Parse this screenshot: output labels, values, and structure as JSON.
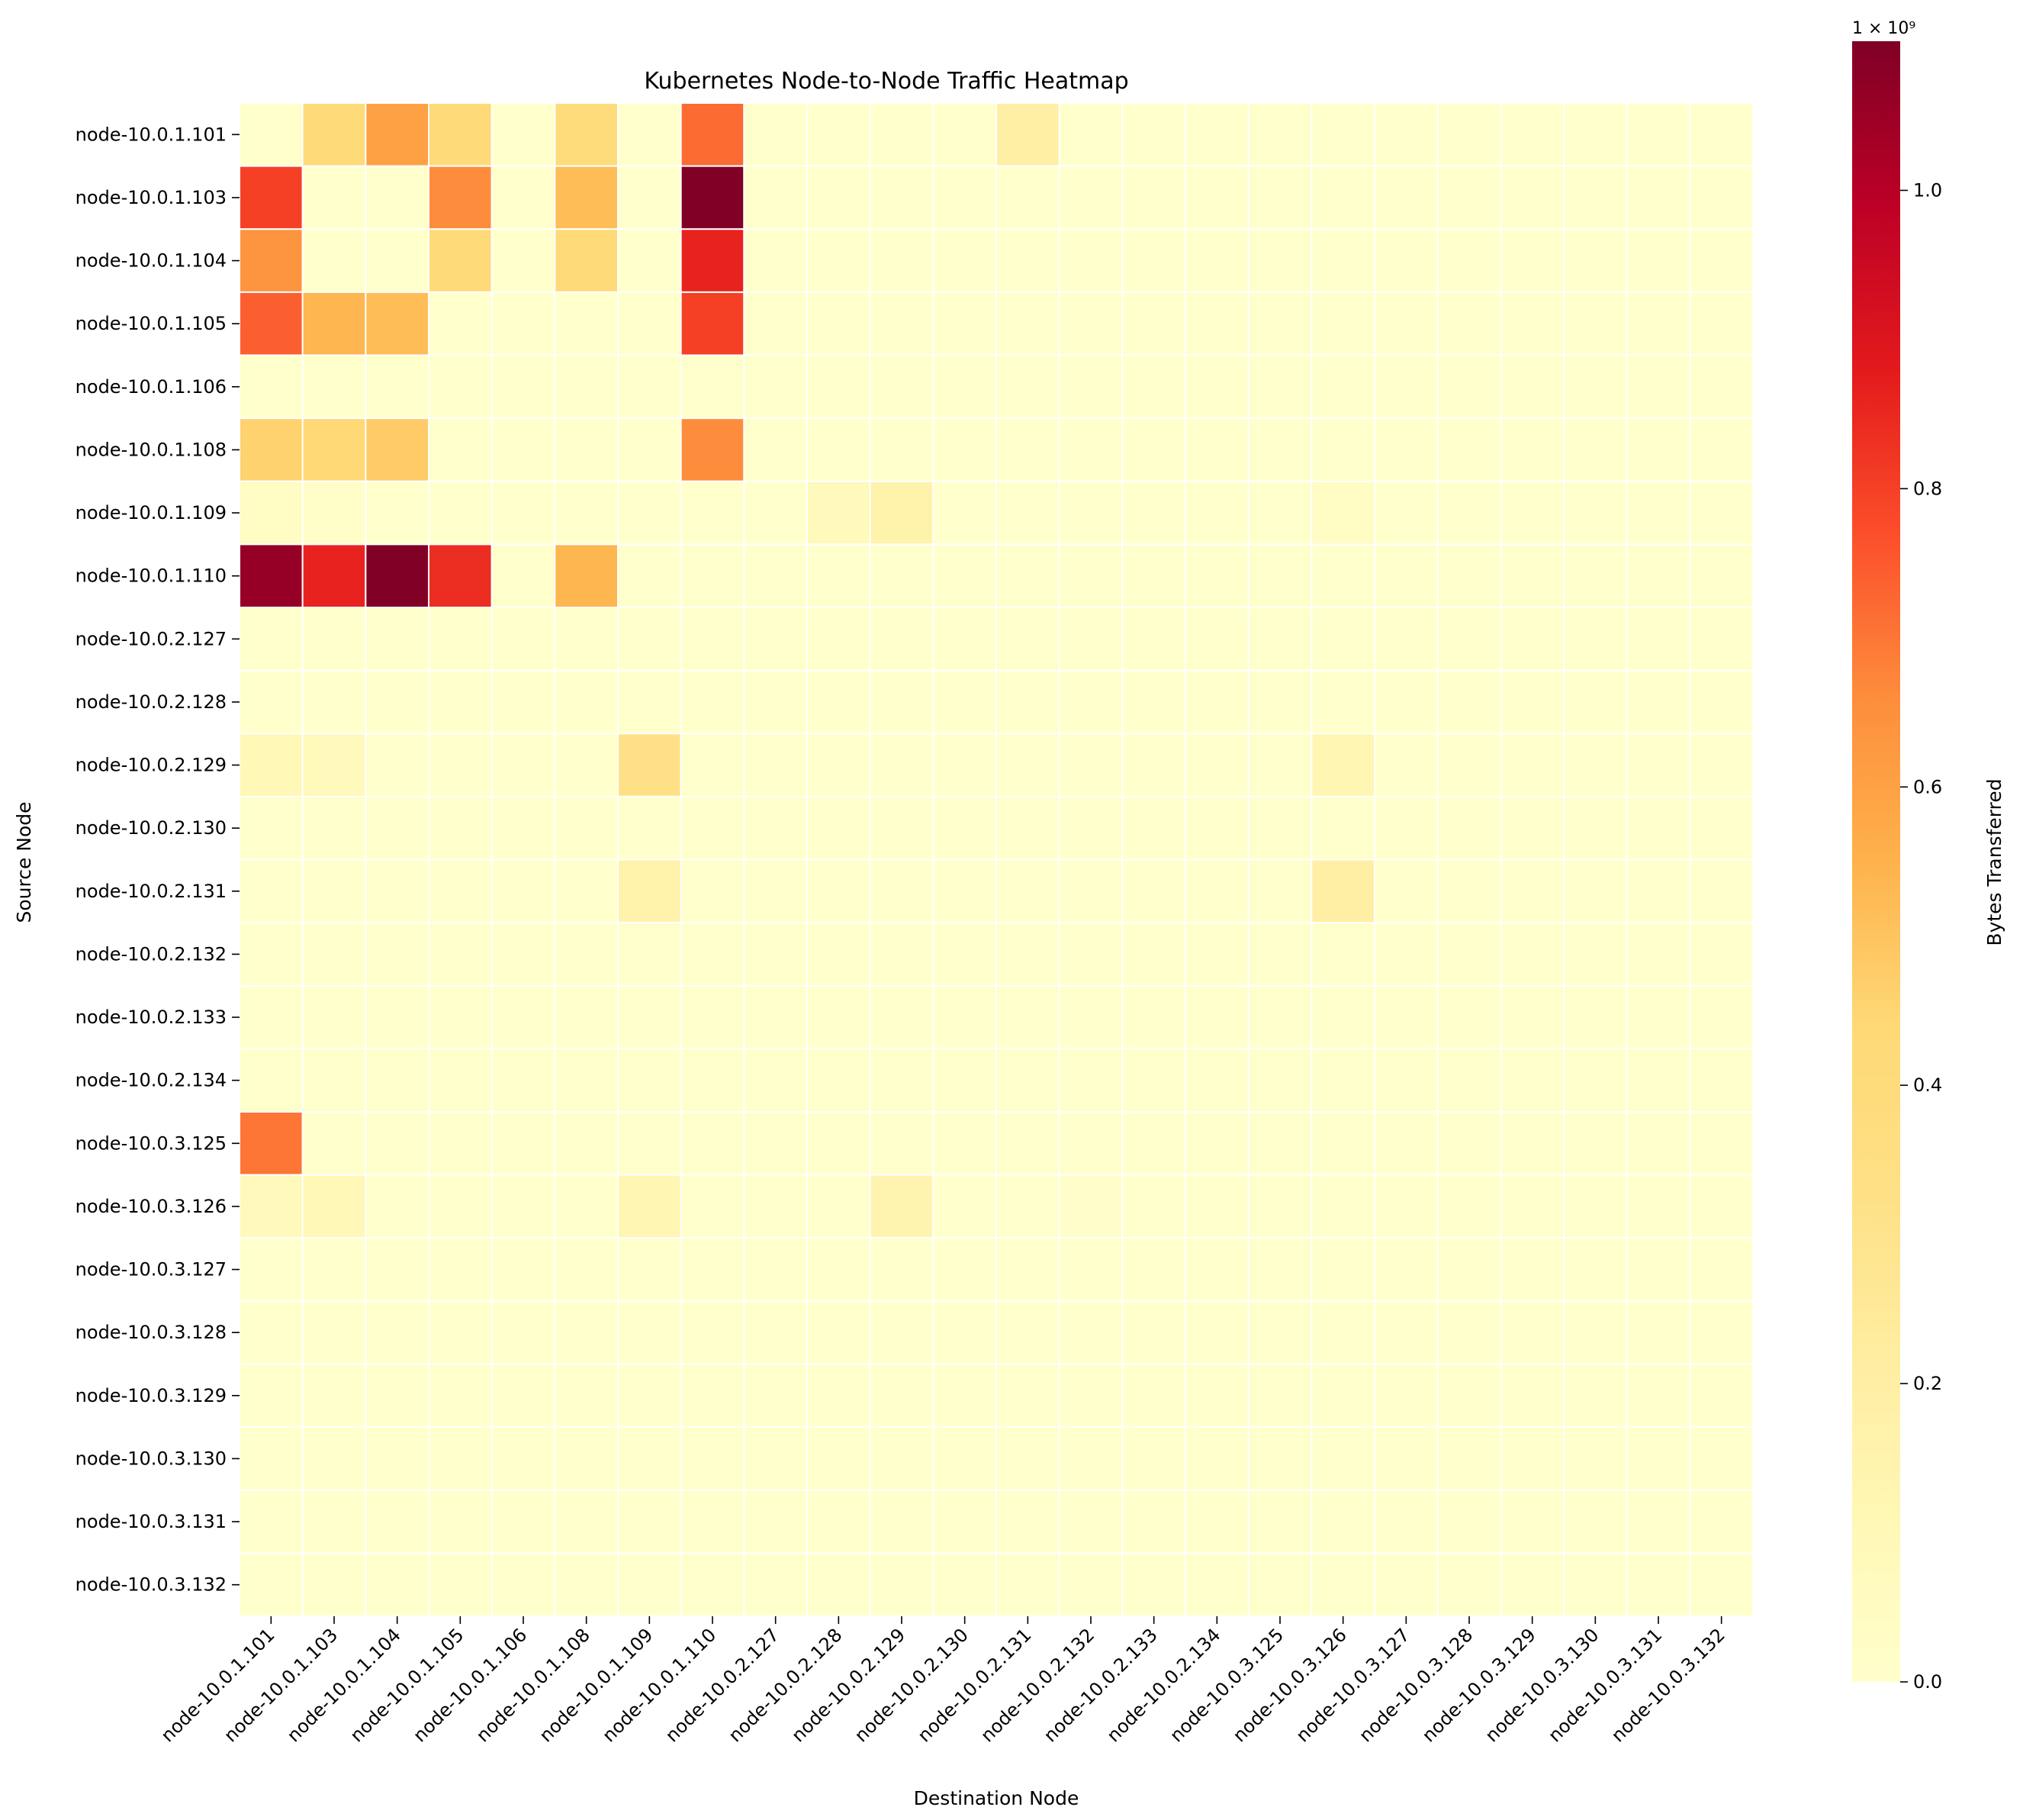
{
  "chart_data": {
    "type": "heatmap",
    "title": "Kubernetes Node-to-Node Traffic Heatmap",
    "xlabel": "Destination Node",
    "ylabel": "Source Node",
    "colorbar": {
      "label": "Bytes Transferred",
      "exponent_label": "1 × 10⁹",
      "multiplier": 1000000000,
      "range": [
        0,
        1.1
      ],
      "ticks": [
        "0.0",
        "0.2",
        "0.4",
        "0.6",
        "0.8",
        "1.0"
      ],
      "tick_values": [
        0,
        0.2,
        0.4,
        0.6,
        0.8,
        1.0
      ],
      "colors": [
        "#ffffcc",
        "#fff7b5",
        "#ffeda0",
        "#fee085",
        "#fed976",
        "#feb24c",
        "#fd8d3c",
        "#fc4e2a",
        "#e31a1c",
        "#bd0026",
        "#800026"
      ]
    },
    "rows": [
      "node-10.0.1.101",
      "node-10.0.1.103",
      "node-10.0.1.104",
      "node-10.0.1.105",
      "node-10.0.1.106",
      "node-10.0.1.108",
      "node-10.0.1.109",
      "node-10.0.1.110",
      "node-10.0.2.127",
      "node-10.0.2.128",
      "node-10.0.2.129",
      "node-10.0.2.130",
      "node-10.0.2.131",
      "node-10.0.2.132",
      "node-10.0.2.133",
      "node-10.0.2.134",
      "node-10.0.3.125",
      "node-10.0.3.126",
      "node-10.0.3.127",
      "node-10.0.3.128",
      "node-10.0.3.129",
      "node-10.0.3.130",
      "node-10.0.3.131",
      "node-10.0.3.132"
    ],
    "columns": [
      "node-10.0.1.101",
      "node-10.0.1.103",
      "node-10.0.1.104",
      "node-10.0.1.105",
      "node-10.0.1.106",
      "node-10.0.1.108",
      "node-10.0.1.109",
      "node-10.0.1.110",
      "node-10.0.2.127",
      "node-10.0.2.128",
      "node-10.0.2.129",
      "node-10.0.2.130",
      "node-10.0.2.131",
      "node-10.0.2.132",
      "node-10.0.2.133",
      "node-10.0.2.134",
      "node-10.0.3.125",
      "node-10.0.3.126",
      "node-10.0.3.127",
      "node-10.0.3.128",
      "node-10.0.3.129",
      "node-10.0.3.130",
      "node-10.0.3.131",
      "node-10.0.3.132"
    ],
    "values": [
      [
        0.0,
        0.42,
        0.6,
        0.42,
        0.0,
        0.4,
        0.0,
        0.72,
        0.0,
        0.0,
        0.0,
        0.0,
        0.2,
        0.0,
        0.0,
        0.0,
        0.0,
        0.0,
        0.0,
        0.0,
        0.0,
        0.0,
        0.0,
        0.0
      ],
      [
        0.8,
        0.0,
        0.0,
        0.66,
        0.0,
        0.52,
        0.0,
        1.1,
        0.0,
        0.0,
        0.0,
        0.0,
        0.0,
        0.0,
        0.0,
        0.0,
        0.0,
        0.0,
        0.0,
        0.0,
        0.0,
        0.0,
        0.0,
        0.0
      ],
      [
        0.64,
        0.0,
        0.0,
        0.42,
        0.0,
        0.42,
        0.0,
        0.86,
        0.0,
        0.0,
        0.0,
        0.0,
        0.0,
        0.0,
        0.0,
        0.0,
        0.0,
        0.0,
        0.0,
        0.0,
        0.0,
        0.0,
        0.0,
        0.0
      ],
      [
        0.74,
        0.54,
        0.52,
        0.0,
        0.0,
        0.0,
        0.0,
        0.8,
        0.0,
        0.0,
        0.0,
        0.0,
        0.0,
        0.0,
        0.0,
        0.0,
        0.0,
        0.0,
        0.0,
        0.0,
        0.0,
        0.0,
        0.0,
        0.0
      ],
      [
        0.0,
        0.0,
        0.0,
        0.0,
        0.0,
        0.0,
        0.0,
        0.0,
        0.0,
        0.0,
        0.0,
        0.0,
        0.0,
        0.0,
        0.0,
        0.0,
        0.0,
        0.0,
        0.0,
        0.0,
        0.0,
        0.0,
        0.0,
        0.0
      ],
      [
        0.46,
        0.44,
        0.48,
        0.0,
        0.0,
        0.0,
        0.0,
        0.66,
        0.0,
        0.0,
        0.0,
        0.0,
        0.0,
        0.0,
        0.0,
        0.0,
        0.0,
        0.0,
        0.0,
        0.0,
        0.0,
        0.0,
        0.0,
        0.0
      ],
      [
        0.04,
        0.02,
        0.0,
        0.0,
        0.0,
        0.0,
        0.0,
        0.0,
        0.0,
        0.08,
        0.16,
        0.0,
        0.0,
        0.0,
        0.0,
        0.0,
        0.0,
        0.04,
        0.0,
        0.0,
        0.0,
        0.0,
        0.0,
        0.0
      ],
      [
        1.06,
        0.86,
        1.1,
        0.84,
        0.0,
        0.54,
        0.0,
        0.0,
        0.0,
        0.0,
        0.0,
        0.0,
        0.0,
        0.0,
        0.0,
        0.0,
        0.0,
        0.0,
        0.0,
        0.0,
        0.0,
        0.0,
        0.0,
        0.0
      ],
      [
        0.0,
        0.0,
        0.0,
        0.0,
        0.0,
        0.0,
        0.0,
        0.0,
        0.0,
        0.0,
        0.0,
        0.0,
        0.0,
        0.0,
        0.0,
        0.0,
        0.0,
        0.0,
        0.0,
        0.0,
        0.0,
        0.0,
        0.0,
        0.0
      ],
      [
        0.0,
        0.0,
        0.0,
        0.0,
        0.0,
        0.0,
        0.0,
        0.0,
        0.0,
        0.0,
        0.0,
        0.0,
        0.0,
        0.0,
        0.0,
        0.0,
        0.0,
        0.0,
        0.0,
        0.0,
        0.0,
        0.0,
        0.0,
        0.0
      ],
      [
        0.1,
        0.08,
        0.0,
        0.0,
        0.0,
        0.0,
        0.32,
        0.0,
        0.0,
        0.0,
        0.0,
        0.0,
        0.0,
        0.0,
        0.0,
        0.0,
        0.0,
        0.12,
        0.0,
        0.0,
        0.0,
        0.0,
        0.0,
        0.0
      ],
      [
        0.0,
        0.0,
        0.0,
        0.0,
        0.0,
        0.0,
        0.0,
        0.0,
        0.0,
        0.0,
        0.0,
        0.0,
        0.0,
        0.0,
        0.0,
        0.0,
        0.0,
        0.0,
        0.0,
        0.0,
        0.0,
        0.0,
        0.0,
        0.0
      ],
      [
        0.0,
        0.0,
        0.0,
        0.0,
        0.0,
        0.0,
        0.16,
        0.0,
        0.0,
        0.0,
        0.0,
        0.0,
        0.0,
        0.0,
        0.0,
        0.0,
        0.0,
        0.2,
        0.0,
        0.0,
        0.0,
        0.0,
        0.0,
        0.0
      ],
      [
        0.0,
        0.0,
        0.0,
        0.0,
        0.0,
        0.0,
        0.0,
        0.0,
        0.0,
        0.0,
        0.0,
        0.0,
        0.0,
        0.0,
        0.0,
        0.0,
        0.0,
        0.0,
        0.0,
        0.0,
        0.0,
        0.0,
        0.0,
        0.0
      ],
      [
        0.0,
        0.0,
        0.0,
        0.0,
        0.0,
        0.0,
        0.0,
        0.0,
        0.0,
        0.0,
        0.0,
        0.0,
        0.0,
        0.0,
        0.0,
        0.0,
        0.0,
        0.0,
        0.0,
        0.0,
        0.0,
        0.0,
        0.0,
        0.0
      ],
      [
        0.0,
        0.0,
        0.0,
        0.0,
        0.0,
        0.0,
        0.0,
        0.0,
        0.0,
        0.0,
        0.0,
        0.0,
        0.0,
        0.0,
        0.0,
        0.0,
        0.0,
        0.0,
        0.0,
        0.0,
        0.0,
        0.0,
        0.0,
        0.0
      ],
      [
        0.7,
        0.0,
        0.0,
        0.0,
        0.0,
        0.0,
        0.0,
        0.0,
        0.0,
        0.0,
        0.0,
        0.0,
        0.0,
        0.0,
        0.0,
        0.0,
        0.0,
        0.0,
        0.0,
        0.0,
        0.0,
        0.0,
        0.0,
        0.0
      ],
      [
        0.08,
        0.1,
        0.0,
        0.0,
        0.0,
        0.0,
        0.12,
        0.0,
        0.0,
        0.0,
        0.14,
        0.0,
        0.0,
        0.01,
        0.0,
        0.0,
        0.0,
        0.0,
        0.0,
        0.0,
        0.0,
        0.0,
        0.0,
        0.0
      ],
      [
        0.0,
        0.0,
        0.0,
        0.0,
        0.0,
        0.0,
        0.0,
        0.0,
        0.0,
        0.0,
        0.0,
        0.0,
        0.0,
        0.0,
        0.0,
        0.0,
        0.0,
        0.0,
        0.0,
        0.0,
        0.0,
        0.0,
        0.0,
        0.0
      ],
      [
        0.0,
        0.0,
        0.0,
        0.0,
        0.0,
        0.0,
        0.0,
        0.0,
        0.0,
        0.0,
        0.0,
        0.0,
        0.0,
        0.0,
        0.0,
        0.0,
        0.0,
        0.0,
        0.0,
        0.0,
        0.0,
        0.0,
        0.0,
        0.0
      ],
      [
        0.0,
        0.0,
        0.0,
        0.0,
        0.0,
        0.0,
        0.0,
        0.0,
        0.0,
        0.0,
        0.0,
        0.0,
        0.0,
        0.0,
        0.0,
        0.0,
        0.0,
        0.0,
        0.0,
        0.0,
        0.0,
        0.0,
        0.0,
        0.0
      ],
      [
        0.0,
        0.0,
        0.0,
        0.0,
        0.0,
        0.0,
        0.0,
        0.0,
        0.0,
        0.0,
        0.0,
        0.0,
        0.0,
        0.0,
        0.0,
        0.0,
        0.0,
        0.0,
        0.0,
        0.0,
        0.0,
        0.0,
        0.0,
        0.0
      ],
      [
        0.0,
        0.0,
        0.0,
        0.0,
        0.0,
        0.0,
        0.0,
        0.0,
        0.0,
        0.0,
        0.0,
        0.0,
        0.0,
        0.0,
        0.0,
        0.0,
        0.0,
        0.0,
        0.0,
        0.0,
        0.0,
        0.0,
        0.0,
        0.0
      ],
      [
        0.0,
        0.0,
        0.0,
        0.0,
        0.0,
        0.0,
        0.0,
        0.0,
        0.0,
        0.0,
        0.0,
        0.0,
        0.0,
        0.0,
        0.0,
        0.0,
        0.0,
        0.0,
        0.0,
        0.0,
        0.0,
        0.0,
        0.0,
        0.0
      ]
    ]
  }
}
